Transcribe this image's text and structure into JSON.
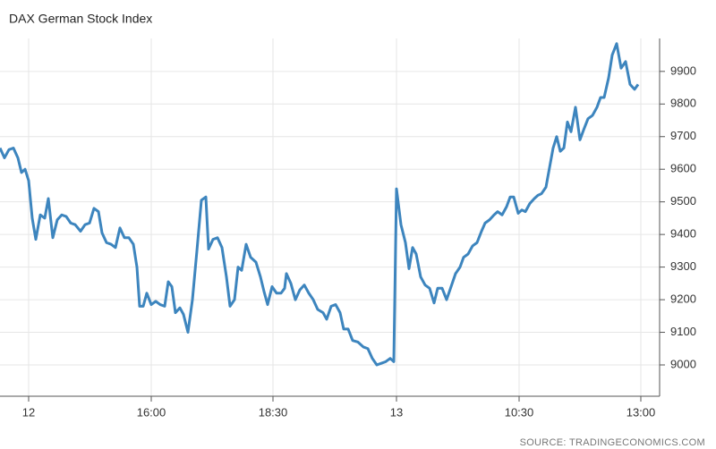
{
  "chart_data": {
    "type": "line",
    "title": "DAX German Stock Index",
    "source": "SOURCE: TRADINGECONOMICS.COM",
    "x": [
      0,
      5,
      10,
      15,
      20,
      24,
      28,
      32,
      36,
      40,
      45,
      50,
      54,
      59,
      64,
      69,
      74,
      79,
      84,
      90,
      95,
      100,
      105,
      110,
      114,
      119,
      124,
      129,
      134,
      139,
      144,
      149,
      153,
      156,
      160,
      164,
      169,
      174,
      179,
      184,
      188,
      192,
      196,
      201,
      205,
      210,
      215,
      220,
      225,
      230,
      233,
      238,
      243,
      248,
      253,
      257,
      262,
      266,
      270,
      275,
      280,
      286,
      291,
      295,
      299,
      304,
      309,
      314,
      318,
      320,
      325,
      330,
      335,
      340,
      345,
      350,
      355,
      361,
      365,
      370,
      375,
      380,
      384,
      389,
      394,
      400,
      406,
      411,
      416,
      421,
      426,
      431,
      436,
      440,
      443,
      448,
      453,
      457,
      461,
      465,
      470,
      475,
      480,
      485,
      489,
      494,
      499,
      504,
      509,
      514,
      518,
      523,
      528,
      533,
      538,
      542,
      547,
      552,
      556,
      561,
      566,
      570,
      574,
      579,
      583,
      587,
      592,
      597,
      601,
      605,
      610,
      614,
      618,
      622,
      626,
      630,
      634,
      638,
      643,
      648,
      652,
      657,
      662,
      667,
      671,
      675,
      680,
      684,
      689,
      694,
      699,
      704,
      709,
      713
    ],
    "series": [
      {
        "name": "DAX",
        "color": "#3d85be",
        "values": [
          9665,
          9635,
          9660,
          9665,
          9635,
          9590,
          9600,
          9565,
          9450,
          9385,
          9460,
          9450,
          9510,
          9390,
          9445,
          9460,
          9455,
          9435,
          9430,
          9410,
          9430,
          9435,
          9480,
          9470,
          9405,
          9375,
          9370,
          9360,
          9420,
          9390,
          9390,
          9370,
          9300,
          9180,
          9180,
          9220,
          9185,
          9195,
          9185,
          9180,
          9255,
          9240,
          9160,
          9175,
          9155,
          9100,
          9200,
          9350,
          9505,
          9515,
          9355,
          9385,
          9390,
          9360,
          9270,
          9180,
          9200,
          9300,
          9290,
          9370,
          9330,
          9315,
          9270,
          9225,
          9185,
          9240,
          9220,
          9220,
          9235,
          9280,
          9250,
          9200,
          9230,
          9245,
          9220,
          9200,
          9170,
          9160,
          9140,
          9180,
          9185,
          9160,
          9110,
          9110,
          9075,
          9070,
          9055,
          9050,
          9020,
          9000,
          9005,
          9010,
          9020,
          9010,
          9540,
          9430,
          9375,
          9295,
          9360,
          9340,
          9270,
          9245,
          9235,
          9190,
          9235,
          9235,
          9200,
          9240,
          9280,
          9300,
          9330,
          9340,
          9365,
          9375,
          9410,
          9435,
          9445,
          9460,
          9470,
          9460,
          9485,
          9515,
          9515,
          9465,
          9475,
          9470,
          9495,
          9510,
          9520,
          9525,
          9545,
          9605,
          9665,
          9700,
          9655,
          9665,
          9745,
          9715,
          9790,
          9690,
          9720,
          9755,
          9765,
          9790,
          9820,
          9820,
          9880,
          9950,
          9985,
          9910,
          9930,
          9860,
          9845,
          9860
        ]
      }
    ],
    "xlim": [
      0,
      737
    ],
    "xticks": [
      {
        "value": 32,
        "label": "12"
      },
      {
        "value": 169,
        "label": "16:00"
      },
      {
        "value": 305,
        "label": "18:30"
      },
      {
        "value": 443,
        "label": "13"
      },
      {
        "value": 580,
        "label": "10:30"
      },
      {
        "value": 716,
        "label": "13:00"
      }
    ],
    "ylim": [
      8904,
      10001
    ],
    "yticks": [
      9000,
      9100,
      9200,
      9300,
      9400,
      9500,
      9600,
      9700,
      9800,
      9900
    ],
    "grid": true
  }
}
